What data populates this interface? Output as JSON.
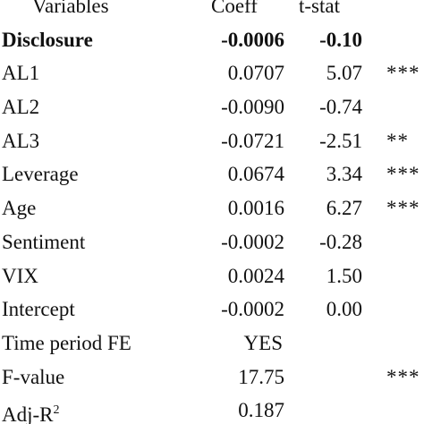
{
  "header": {
    "variables": "Variables",
    "coeff": "Coeff",
    "tstat": "t-stat"
  },
  "rows": [
    {
      "variable": "Disclosure",
      "coeff": "-0.0006",
      "tstat": "-0.10",
      "sig": ""
    },
    {
      "variable": "AL1",
      "coeff": "0.0707",
      "tstat": "5.07",
      "sig": "***"
    },
    {
      "variable": "AL2",
      "coeff": "-0.0090",
      "tstat": "-0.74",
      "sig": ""
    },
    {
      "variable": "AL3",
      "coeff": "-0.0721",
      "tstat": "-2.51",
      "sig": "**"
    },
    {
      "variable": "Leverage",
      "coeff": "0.0674",
      "tstat": "3.34",
      "sig": "***"
    },
    {
      "variable": "Age",
      "coeff": "0.0016",
      "tstat": "6.27",
      "sig": "***"
    },
    {
      "variable": "Sentiment",
      "coeff": "-0.0002",
      "tstat": "-0.28",
      "sig": ""
    },
    {
      "variable": "VIX",
      "coeff": "0.0024",
      "tstat": "1.50",
      "sig": ""
    },
    {
      "variable": "Intercept",
      "coeff": "-0.0002",
      "tstat": "0.00",
      "sig": ""
    },
    {
      "variable": "Time period FE",
      "coeff": "YES",
      "tstat": "",
      "sig": ""
    },
    {
      "variable": "F-value",
      "coeff": "17.75",
      "tstat": "",
      "sig": "***"
    }
  ],
  "adj_r2": {
    "label_prefix": "Adj-R",
    "superscript": "2",
    "coeff": "0.187"
  }
}
